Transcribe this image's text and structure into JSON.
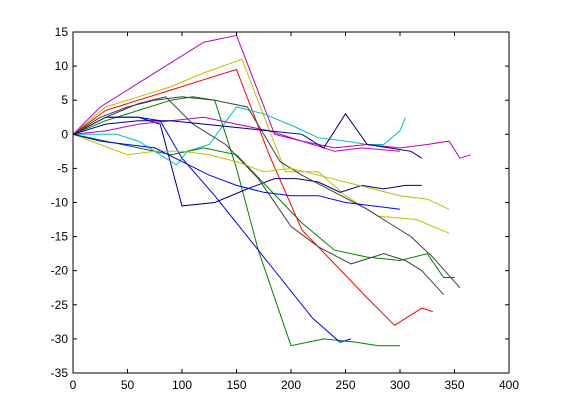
{
  "chart_data": {
    "type": "line",
    "title": "",
    "xlabel": "",
    "ylabel": "",
    "xlim": [
      0,
      400
    ],
    "ylim": [
      -35,
      15
    ],
    "xticks": [
      0,
      50,
      100,
      150,
      200,
      250,
      300,
      350,
      400
    ],
    "yticks": [
      -35,
      -30,
      -25,
      -20,
      -15,
      -10,
      -5,
      0,
      5,
      10,
      15
    ],
    "grid": false,
    "legend": "none",
    "series": [
      {
        "color": "#bf00bf",
        "x": [
          0,
          25,
          55,
          85,
          120,
          150,
          185,
          210,
          240,
          265,
          300
        ],
        "y": [
          0,
          4,
          7,
          10,
          13.5,
          14.5,
          0,
          -1,
          -2.5,
          -2,
          -2.5
        ]
      },
      {
        "color": "#bfbf00",
        "x": [
          0,
          30,
          60,
          90,
          120,
          155,
          195,
          225,
          250,
          280,
          315,
          345
        ],
        "y": [
          0,
          4,
          5.5,
          7,
          9,
          11,
          -5.5,
          -5.5,
          -9,
          -12,
          -12.5,
          -14.5
        ]
      },
      {
        "color": "#ff0000",
        "x": [
          0,
          30,
          60,
          90,
          120,
          150,
          180,
          210,
          240,
          270,
          295,
          305,
          320,
          330
        ],
        "y": [
          0,
          3.5,
          5,
          6.5,
          8,
          9.5,
          -3,
          -14,
          -19,
          -24,
          -28,
          -27,
          -25.5,
          -26
        ]
      },
      {
        "color": "#008000",
        "x": [
          0,
          30,
          60,
          90,
          110,
          130,
          150,
          170,
          200,
          230,
          260,
          280,
          300
        ],
        "y": [
          0,
          2,
          3.5,
          5,
          5.5,
          5,
          -5,
          -17,
          -31,
          -30,
          -30.5,
          -31,
          -31
        ]
      },
      {
        "color": "#000080",
        "x": [
          0,
          30,
          60,
          80,
          100,
          130,
          160,
          185,
          205,
          225,
          245,
          265,
          285,
          305,
          320
        ],
        "y": [
          0,
          2.5,
          2.5,
          1.5,
          -10.5,
          -10,
          -8,
          -6.5,
          -6.5,
          -7,
          -8.5,
          -7.5,
          -8,
          -7.5,
          -7.5
        ]
      },
      {
        "color": "#0000ff",
        "x": [
          0,
          30,
          60,
          80,
          100,
          130,
          160,
          190,
          220,
          245,
          255
        ],
        "y": [
          0,
          2.5,
          2.5,
          2,
          -3.5,
          -9,
          -15,
          -21,
          -27,
          -30.5,
          -30
        ]
      },
      {
        "color": "#00bfbf",
        "x": [
          0,
          20,
          40,
          60,
          80,
          95,
          105,
          115,
          125,
          150,
          175,
          205,
          225,
          250,
          270,
          285,
          300,
          305
        ],
        "y": [
          0,
          0,
          0,
          -1,
          -3,
          -4.5,
          -2.5,
          -2,
          -1.5,
          4,
          3,
          1,
          -0.5,
          -1,
          -1.5,
          -1.5,
          0.5,
          2.5
        ]
      },
      {
        "color": "#404040",
        "x": [
          0,
          25,
          50,
          75,
          100,
          130,
          160,
          190,
          210,
          240,
          270,
          290,
          310,
          330,
          355
        ],
        "y": [
          0,
          2.5,
          4,
          5,
          5.5,
          5,
          4,
          -4,
          -6,
          -8.5,
          -11,
          -13,
          -15,
          -18,
          -22.5
        ]
      },
      {
        "color": "#008000",
        "x": [
          0,
          30,
          60,
          90,
          120,
          150,
          180,
          210,
          240,
          270,
          300,
          325,
          340,
          350
        ],
        "y": [
          0,
          -1,
          -2,
          -3,
          -2,
          -3,
          -8,
          -13,
          -17,
          -18,
          -18.5,
          -17.5,
          -21,
          -21
        ]
      },
      {
        "color": "#404040",
        "x": [
          0,
          30,
          60,
          85,
          110,
          140,
          170,
          200,
          225,
          255,
          285,
          305,
          320,
          340
        ],
        "y": [
          0,
          2.5,
          4.5,
          5.5,
          1.5,
          -1.5,
          -6.5,
          -13.5,
          -16.5,
          -19,
          -17.5,
          -18.5,
          -20,
          -23.5
        ]
      },
      {
        "color": "#bf00bf",
        "x": [
          0,
          30,
          60,
          90,
          120,
          150,
          180,
          210,
          240,
          270,
          300,
          325,
          345,
          355,
          365
        ],
        "y": [
          0,
          0.5,
          1.5,
          2,
          2.5,
          1.5,
          0.5,
          -1,
          -2,
          -1.5,
          -2,
          -1.5,
          -1,
          -3.5,
          -3
        ]
      },
      {
        "color": "#000080",
        "x": [
          0,
          30,
          60,
          90,
          120,
          150,
          180,
          210,
          230,
          250,
          270,
          290,
          310,
          320
        ],
        "y": [
          0,
          1.5,
          2,
          2,
          1.5,
          1,
          0.5,
          0,
          -2,
          3,
          -1.5,
          -2,
          -2.5,
          -3.5
        ]
      },
      {
        "color": "#bfbf00",
        "x": [
          0,
          25,
          50,
          75,
          100,
          125,
          150,
          175,
          200,
          225,
          250,
          275,
          300,
          325,
          345
        ],
        "y": [
          0,
          -1.5,
          -3,
          -2.5,
          -2.5,
          -3,
          -4,
          -5.5,
          -5,
          -6,
          -7,
          -8,
          -9,
          -9.5,
          -11
        ]
      },
      {
        "color": "#0000ff",
        "x": [
          0,
          25,
          50,
          75,
          100,
          125,
          150,
          175,
          200,
          225,
          250,
          275,
          300
        ],
        "y": [
          0,
          -1,
          -1.5,
          -2,
          -4,
          -6,
          -7.5,
          -8.5,
          -9,
          -9,
          -10,
          -10.5,
          -11
        ]
      }
    ]
  }
}
